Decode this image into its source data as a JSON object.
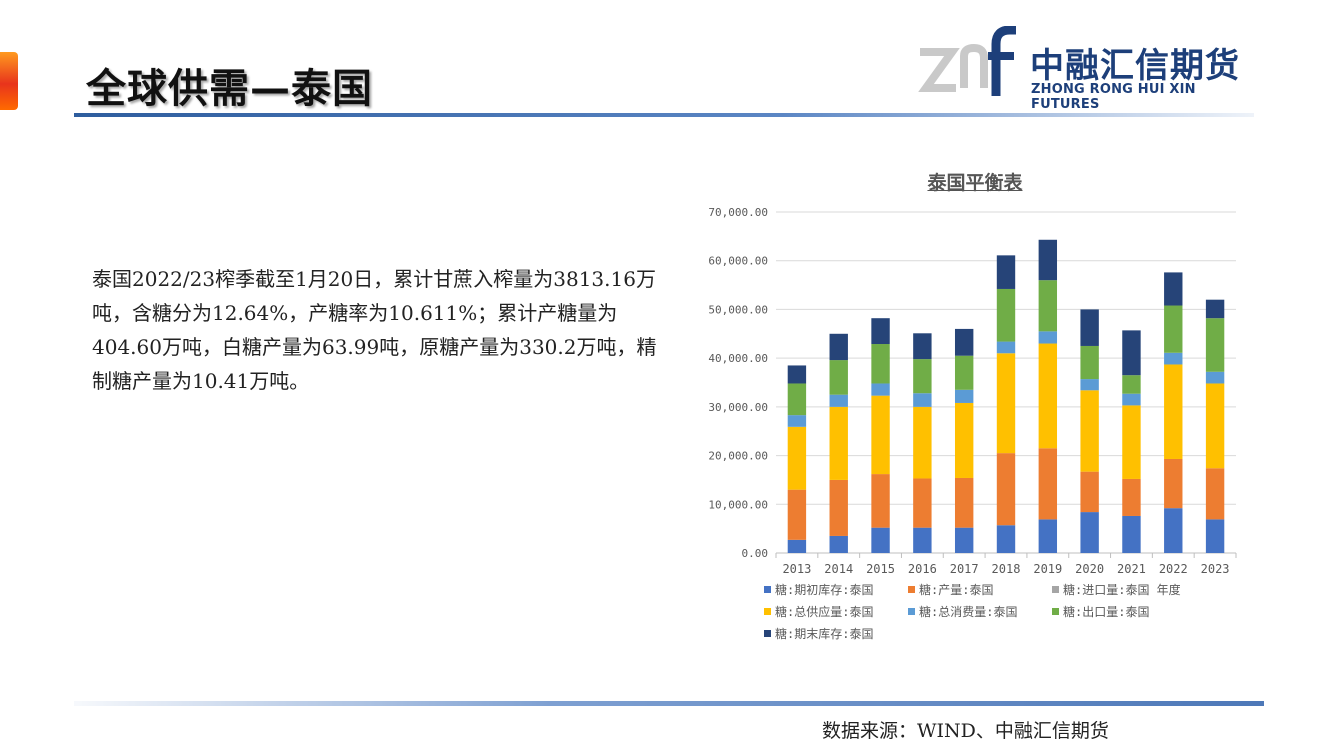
{
  "header": {
    "title": "全球供需—泰国",
    "logo_cn": "中融汇信期货",
    "logo_en": "ZHONG RONG HUI XIN FUTURES"
  },
  "body": {
    "paragraph": "泰国2022/23榨季截至1月20日，累计甘蔗入榨量为3813.16万吨，含糖分为12.64%，产糖率为10.611%；累计产糖量为404.60万吨，白糖产量为63.99吨，原糖产量为330.2万吨，精制糖产量为10.41万吨。"
  },
  "footer": {
    "source": "数据来源：WIND、中融汇信期货"
  },
  "chart_data": {
    "type": "bar",
    "stacked": true,
    "title": "泰国平衡表",
    "categories": [
      "2013",
      "2014",
      "2015",
      "2016",
      "2017",
      "2018",
      "2019",
      "2020",
      "2021",
      "2022",
      "2023"
    ],
    "ylim": [
      0,
      70000
    ],
    "yticks": [
      "0.00",
      "10,000.00",
      "20,000.00",
      "30,000.00",
      "40,000.00",
      "50,000.00",
      "60,000.00",
      "70,000.00"
    ],
    "ytick_values": [
      0,
      10000,
      20000,
      30000,
      40000,
      50000,
      60000,
      70000
    ],
    "grid": true,
    "legend_position": "bottom",
    "series": [
      {
        "name": "糖:期初库存:泰国",
        "color": "#4472c4",
        "values": [
          2700,
          3500,
          5200,
          5200,
          5200,
          5700,
          6900,
          8400,
          7600,
          9200,
          6900
        ]
      },
      {
        "name": "糖:产量:泰国",
        "color": "#ed7d31",
        "values": [
          10300,
          11500,
          11000,
          10100,
          10200,
          14800,
          14600,
          8300,
          7600,
          10100,
          10500
        ]
      },
      {
        "name": "糖:进口量:泰国 年度",
        "color": "#a5a5a5",
        "values": [
          0,
          0,
          0,
          0,
          0,
          0,
          0,
          0,
          0,
          0,
          0
        ]
      },
      {
        "name": "糖:总供应量:泰国",
        "color": "#ffc000",
        "values": [
          12900,
          15000,
          16100,
          14700,
          15400,
          20500,
          21500,
          16700,
          15100,
          19400,
          17400
        ]
      },
      {
        "name": "糖:总消费量:泰国",
        "color": "#5b9bd5",
        "values": [
          2400,
          2500,
          2500,
          2800,
          2700,
          2400,
          2500,
          2300,
          2400,
          2400,
          2400
        ]
      },
      {
        "name": "糖:出口量:泰国",
        "color": "#70ad47",
        "values": [
          6500,
          7100,
          8100,
          7000,
          7000,
          10800,
          10500,
          6800,
          3800,
          9700,
          11000
        ]
      },
      {
        "name": "糖:期末库存:泰国",
        "color": "#264478",
        "values": [
          3700,
          5400,
          5300,
          5300,
          5500,
          6900,
          8300,
          7500,
          9200,
          6800,
          3800
        ]
      }
    ]
  }
}
